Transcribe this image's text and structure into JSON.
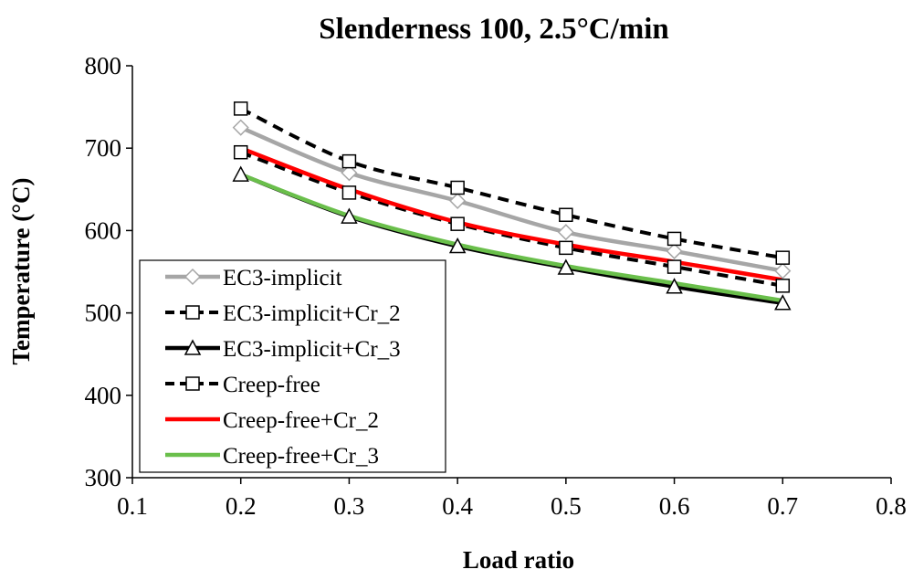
{
  "chart_data": {
    "type": "line",
    "title": "Slenderness 100, 2.5°C/min",
    "xlabel": "Load ratio",
    "ylabel": "Temperature (°C)",
    "xlim": [
      0.1,
      0.8
    ],
    "ylim": [
      300,
      800
    ],
    "xticks": [
      "0.1",
      "0.2",
      "0.3",
      "0.4",
      "0.5",
      "0.6",
      "0.7",
      "0.8"
    ],
    "yticks": [
      "300",
      "400",
      "500",
      "600",
      "700",
      "800"
    ],
    "grid": false,
    "legend_position": "bottom-left",
    "x": [
      0.2,
      0.3,
      0.4,
      0.5,
      0.6,
      0.7
    ],
    "series": [
      {
        "name": "EC3-implicit",
        "values": [
          725,
          670,
          636,
          598,
          575,
          551
        ],
        "color": "#a6a6a6",
        "dash": "solid",
        "marker": "diamond",
        "show_line": true
      },
      {
        "name": "EC3-implicit+Cr_2",
        "values": [
          695,
          646,
          608,
          579,
          556,
          533
        ],
        "color": "#000000",
        "dash": "dashed",
        "marker": "square",
        "show_line": true
      },
      {
        "name": "EC3-implicit+Cr_3",
        "values": [
          668,
          617,
          581,
          555,
          532,
          512
        ],
        "color": "#000000",
        "dash": "solid",
        "marker": "triangle",
        "show_line": true
      },
      {
        "name": "Creep-free",
        "values": [
          748,
          684,
          652,
          619,
          590,
          567
        ],
        "color": "#000000",
        "dash": "dashed",
        "marker": "square",
        "show_line": true
      },
      {
        "name": "Creep-free+Cr_2",
        "values": [
          700,
          650,
          610,
          583,
          562,
          540
        ],
        "color": "#ff0000",
        "dash": "solid",
        "marker": "none",
        "show_line": true
      },
      {
        "name": "Creep-free+Cr_3",
        "values": [
          668,
          618,
          583,
          557,
          536,
          515
        ],
        "color": "#6abf4b",
        "dash": "solid",
        "marker": "none",
        "show_line": true
      }
    ]
  }
}
